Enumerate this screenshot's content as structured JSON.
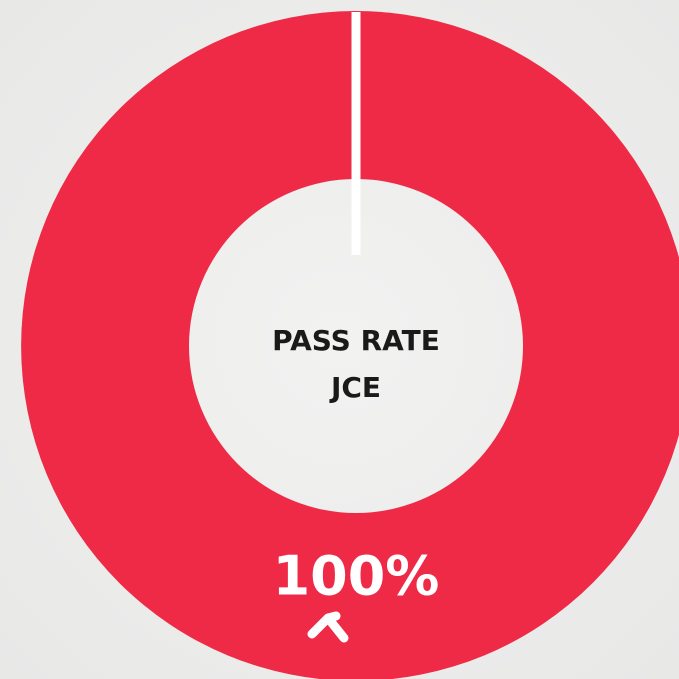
{
  "chart_data": {
    "type": "pie",
    "donut": true,
    "center_label": [
      "PASS RATE",
      "JCE"
    ],
    "values": [
      100
    ],
    "value_labels": [
      "100%"
    ],
    "total": 100,
    "color": "#ee2a46"
  }
}
